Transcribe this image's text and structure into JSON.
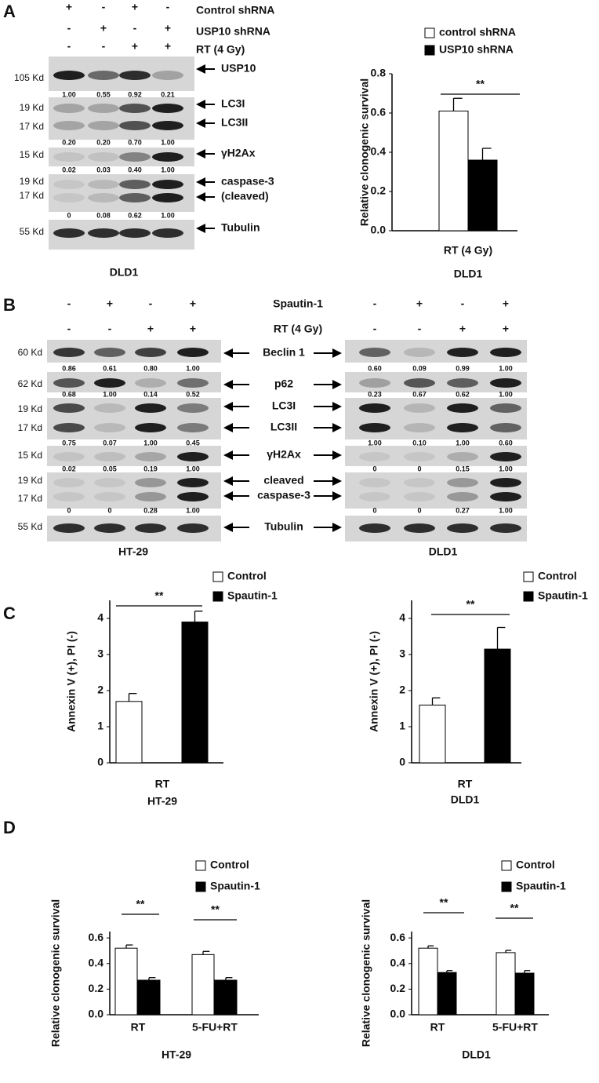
{
  "panels": [
    "A",
    "B",
    "C",
    "D"
  ],
  "panel_a": {
    "treatments": [
      {
        "name": "Control shRNA",
        "signs": [
          "+",
          "-",
          "+",
          "-"
        ]
      },
      {
        "name": "USP10 shRNA",
        "signs": [
          "-",
          "+",
          "-",
          "+"
        ]
      },
      {
        "name": "RT (4 Gy)",
        "signs": [
          "-",
          "-",
          "+",
          "+"
        ]
      }
    ],
    "cell": "DLD1",
    "bands": [
      {
        "labels": [
          "USP10"
        ],
        "kd": [
          "105 Kd"
        ],
        "quant": [
          "1.00",
          "0.55",
          "0.92",
          "0.21"
        ]
      },
      {
        "labels": [
          "LC3I",
          "LC3II"
        ],
        "kd": [
          "19 Kd",
          "17 Kd"
        ],
        "quant": [
          "0.20",
          "0.20",
          "0.70",
          "1.00"
        ]
      },
      {
        "labels": [
          "γH2Ax"
        ],
        "kd": [
          "15 Kd"
        ],
        "quant": [
          "0.02",
          "0.03",
          "0.40",
          "1.00"
        ]
      },
      {
        "labels": [
          "caspase-3",
          "(cleaved)"
        ],
        "kd": [
          "19 Kd",
          "17 Kd"
        ],
        "quant": [
          "0",
          "0.08",
          "0.62",
          "1.00"
        ]
      },
      {
        "labels": [
          "Tubulin"
        ],
        "kd": [
          "55 Kd"
        ]
      }
    ]
  },
  "panel_b": {
    "treatments": [
      {
        "name": "Spautin-1",
        "signs": [
          "-",
          "+",
          "-",
          "+"
        ]
      },
      {
        "name": "RT (4 Gy)",
        "signs": [
          "-",
          "-",
          "+",
          "+"
        ]
      }
    ],
    "cells": [
      "HT-29",
      "DLD1"
    ],
    "bands": [
      {
        "labels": [
          "Beclin 1"
        ],
        "kd": [
          "60 Kd"
        ],
        "quant": [
          [
            "0.86",
            "0.61",
            "0.80",
            "1.00"
          ],
          [
            "0.60",
            "0.09",
            "0.99",
            "1.00"
          ]
        ]
      },
      {
        "labels": [
          "p62"
        ],
        "kd": [
          "62 Kd"
        ],
        "quant": [
          [
            "0.68",
            "1.00",
            "0.14",
            "0.52"
          ],
          [
            "0.23",
            "0.67",
            "0.62",
            "1.00"
          ]
        ]
      },
      {
        "labels": [
          "LC3I",
          "LC3II"
        ],
        "kd": [
          "19 Kd",
          "17 Kd"
        ],
        "quant": [
          [
            "0.75",
            "0.07",
            "1.00",
            "0.45"
          ],
          [
            "1.00",
            "0.10",
            "1.00",
            "0.60"
          ]
        ]
      },
      {
        "labels": [
          "γH2Ax"
        ],
        "kd": [
          "15 Kd"
        ],
        "quant": [
          [
            "0.02",
            "0.05",
            "0.19",
            "1.00"
          ],
          [
            "0",
            "0",
            "0.15",
            "1.00"
          ]
        ]
      },
      {
        "labels": [
          "cleaved",
          "caspase-3"
        ],
        "kd": [
          "19 Kd",
          "17 Kd"
        ],
        "quant": [
          [
            "0",
            "0",
            "0.28",
            "1.00"
          ],
          [
            "0",
            "0",
            "0.27",
            "1.00"
          ]
        ]
      },
      {
        "labels": [
          "Tubulin"
        ],
        "kd": [
          "55 Kd"
        ]
      }
    ]
  },
  "chart_data": [
    {
      "type": "bar",
      "categories": [
        "RT (4 Gy)"
      ],
      "series": [
        {
          "name": "control shRNA",
          "color": "#ffffff",
          "values": [
            0.61
          ],
          "errors": [
            0.065
          ]
        },
        {
          "name": "USP10 shRNA",
          "color": "#000000",
          "values": [
            0.36
          ],
          "errors": [
            0.06
          ]
        }
      ],
      "ylim": [
        0,
        0.8
      ],
      "yticks": [
        {
          "value": 0,
          "label": "0.0"
        },
        0.2,
        0.4,
        0.6,
        0.8
      ],
      "ylabel": "Relative clonogenic survival",
      "xlabel": "DLD1",
      "annotations": [
        "**"
      ]
    },
    {
      "type": "bar",
      "categories": [
        "RT"
      ],
      "series": [
        {
          "name": "Control",
          "color": "#ffffff",
          "values": [
            1.7
          ],
          "errors": [
            0.22
          ]
        },
        {
          "name": "Spautin-1",
          "color": "#000000",
          "values": [
            3.9
          ],
          "errors": [
            0.3
          ]
        }
      ],
      "ylim": [
        0,
        4.5
      ],
      "yticks": [
        0,
        1,
        2,
        3,
        4
      ],
      "ylabel": "Annexin V (+), PI (-)",
      "xlabel": "HT-29",
      "annotations": [
        "**"
      ]
    },
    {
      "type": "bar",
      "categories": [
        "RT"
      ],
      "series": [
        {
          "name": "Control",
          "color": "#ffffff",
          "values": [
            1.6
          ],
          "errors": [
            0.2
          ]
        },
        {
          "name": "Spautin-1",
          "color": "#000000",
          "values": [
            3.15
          ],
          "errors": [
            0.6
          ]
        }
      ],
      "ylim": [
        0,
        4.5
      ],
      "yticks": [
        0,
        1,
        2,
        3,
        4
      ],
      "ylabel": "Annexin V (+), PI (-)",
      "xlabel": "DLD1",
      "annotations": [
        "**"
      ]
    },
    {
      "type": "bar",
      "categories": [
        "RT",
        "5-FU+RT"
      ],
      "series": [
        {
          "name": "Control",
          "color": "#ffffff",
          "values": [
            0.52,
            0.47
          ],
          "errors": [
            0.025,
            0.025
          ]
        },
        {
          "name": "Spautin-1",
          "color": "#000000",
          "values": [
            0.27,
            0.27
          ],
          "errors": [
            0.02,
            0.02
          ]
        }
      ],
      "ylim": [
        0,
        0.65
      ],
      "yticks": [
        {
          "value": 0,
          "label": "0.0"
        },
        0.2,
        0.4,
        0.6
      ],
      "ylabel": "Relative clonogenic survival",
      "xlabel": "HT-29",
      "annotations": [
        "**",
        "**"
      ]
    },
    {
      "type": "bar",
      "categories": [
        "RT",
        "5-FU+RT"
      ],
      "series": [
        {
          "name": "Control",
          "color": "#ffffff",
          "values": [
            0.52,
            0.485
          ],
          "errors": [
            0.018,
            0.018
          ]
        },
        {
          "name": "Spautin-1",
          "color": "#000000",
          "values": [
            0.33,
            0.325
          ],
          "errors": [
            0.015,
            0.02
          ]
        }
      ],
      "ylim": [
        0,
        0.65
      ],
      "yticks": [
        {
          "value": 0,
          "label": "0.0"
        },
        0.2,
        0.4,
        0.6
      ],
      "ylabel": "Relative clonogenic survival",
      "xlabel": "DLD1",
      "annotations": [
        "**",
        "**"
      ]
    }
  ]
}
